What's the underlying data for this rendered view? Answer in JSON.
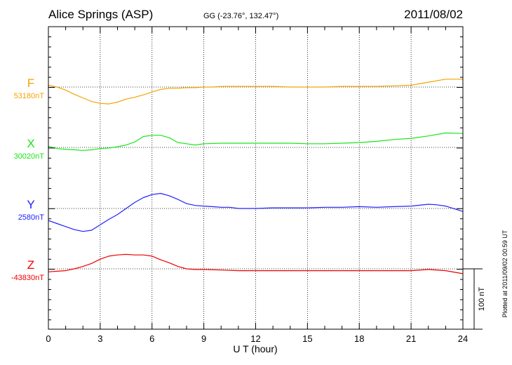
{
  "header": {
    "title": "Alice Springs (ASP)",
    "coords": "GG (-23.76°, 132.47°)",
    "date": "2011/08/02"
  },
  "side_note": "Plotted at 2011/09/02 00:59 UT",
  "scale_label": "100 nT",
  "chart_data": {
    "type": "line",
    "xlabel": "U T (hour)",
    "xlim": [
      0,
      24
    ],
    "x_ticks": [
      "0",
      "3",
      "6",
      "9",
      "12",
      "15",
      "18",
      "21",
      "24"
    ],
    "grid": true,
    "scale_nT": 100,
    "series": [
      {
        "name": "F",
        "baseline": "53180nT",
        "color": "#f5a300",
        "x": [
          0,
          0.5,
          1,
          1.5,
          2,
          2.5,
          3,
          3.5,
          4,
          4.5,
          5,
          5.5,
          6,
          6.5,
          7,
          7.5,
          8,
          8.5,
          9,
          9.5,
          10,
          11,
          12,
          13,
          14,
          15,
          16,
          17,
          18,
          19,
          20,
          21,
          22,
          23,
          24
        ],
        "y": [
          3,
          0,
          -5,
          -12,
          -18,
          -24,
          -27,
          -28,
          -25,
          -20,
          -17,
          -13,
          -8,
          -4,
          -2,
          -2,
          -1,
          -1,
          0,
          0,
          1,
          1,
          1,
          1,
          0,
          0,
          0,
          1,
          1,
          1,
          2,
          3,
          8,
          13,
          13
        ]
      },
      {
        "name": "X",
        "baseline": "30020nT",
        "color": "#19e619",
        "x": [
          0,
          0.5,
          1,
          1.5,
          2,
          2.5,
          3,
          3.5,
          4,
          4.5,
          5,
          5.5,
          6,
          6.5,
          7,
          7.5,
          8,
          8.5,
          9,
          10,
          11,
          12,
          13,
          14,
          15,
          16,
          17,
          18,
          19,
          20,
          21,
          22,
          23,
          24
        ],
        "y": [
          2,
          -2,
          -3,
          -4,
          -5,
          -4,
          -2,
          -1,
          1,
          4,
          9,
          18,
          20,
          20,
          16,
          8,
          6,
          4,
          6,
          7,
          7,
          7,
          7,
          7,
          6,
          6,
          7,
          8,
          10,
          13,
          15,
          19,
          24,
          23
        ]
      },
      {
        "name": "Y",
        "baseline": "2580nT",
        "color": "#2020ff",
        "x": [
          0,
          0.5,
          1,
          1.5,
          2,
          2.5,
          3,
          3.5,
          4,
          4.5,
          5,
          5.5,
          6,
          6.5,
          7,
          7.5,
          8,
          8.5,
          9,
          9.5,
          10,
          10.5,
          11,
          12,
          13,
          14,
          15,
          16,
          17,
          18,
          19,
          20,
          21,
          22,
          22.5,
          23,
          24
        ],
        "y": [
          -20,
          -25,
          -30,
          -35,
          -38,
          -36,
          -27,
          -18,
          -10,
          0,
          10,
          18,
          23,
          25,
          21,
          15,
          8,
          5,
          4,
          3,
          2,
          2,
          0,
          0,
          1,
          1,
          1,
          2,
          2,
          3,
          2,
          3,
          4,
          7,
          6,
          4,
          -5
        ]
      },
      {
        "name": "Z",
        "baseline": "-43830nT",
        "color": "#ee0000",
        "x": [
          0,
          0.5,
          1,
          1.5,
          2,
          2.5,
          3,
          3.5,
          4,
          4.5,
          5,
          5.5,
          6,
          6.5,
          7,
          7.5,
          8,
          8.5,
          9,
          10,
          11,
          12,
          13,
          14,
          15,
          16,
          17,
          18,
          19,
          20,
          21,
          22,
          23,
          24
        ],
        "y": [
          -5,
          -4,
          -3,
          0,
          4,
          9,
          16,
          21,
          23,
          24,
          23,
          23,
          21,
          15,
          10,
          4,
          0,
          -1,
          -1,
          -2,
          -3,
          -3,
          -3,
          -3,
          -3,
          -3,
          -3,
          -3,
          -3,
          -3,
          -3,
          -1,
          -3,
          -8
        ]
      }
    ]
  }
}
